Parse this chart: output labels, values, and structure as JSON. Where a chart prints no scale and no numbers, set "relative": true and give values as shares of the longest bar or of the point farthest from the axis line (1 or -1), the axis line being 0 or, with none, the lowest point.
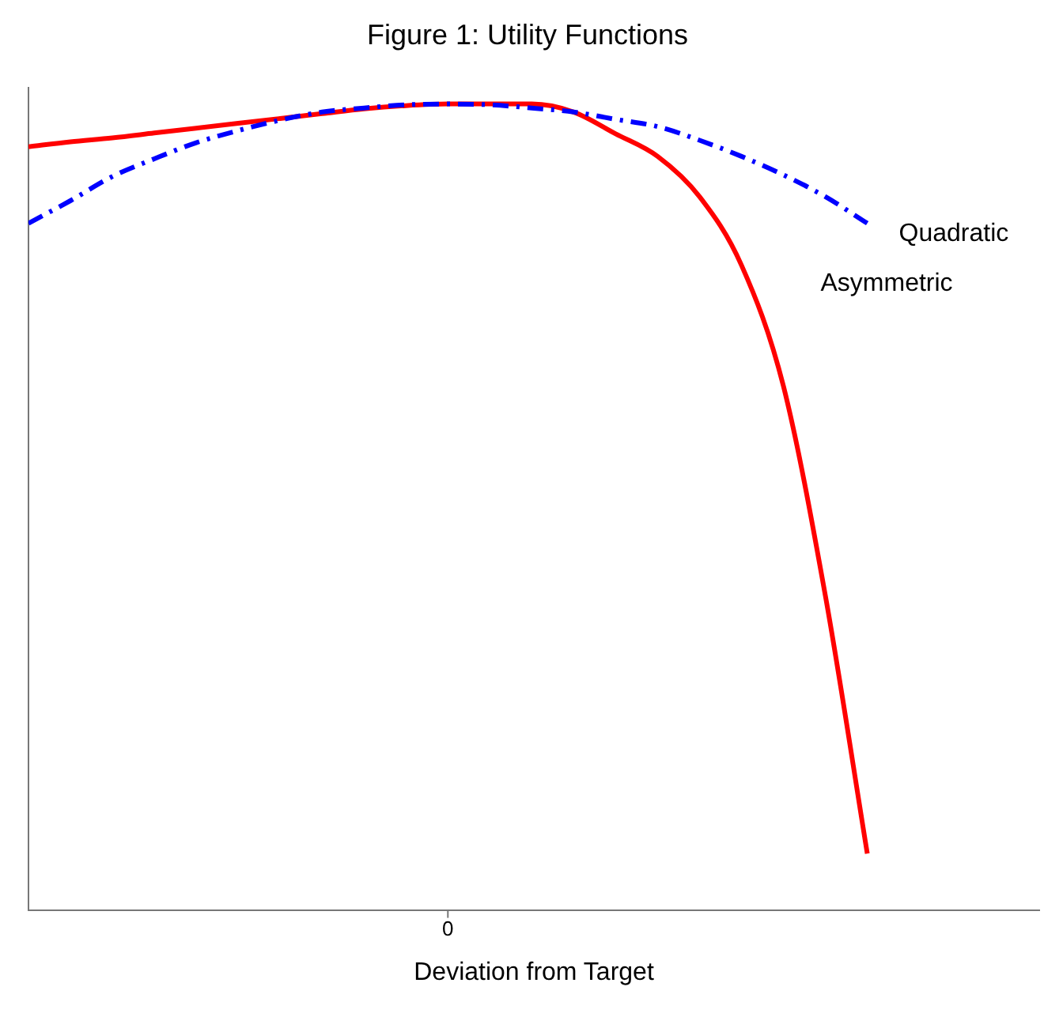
{
  "chart_data": {
    "type": "line",
    "title": "Figure 1: Utility Functions",
    "xlabel": "Deviation from Target",
    "relative": true,
    "annotations": [
      "0"
    ],
    "grid": false,
    "legend": false,
    "marker": "none",
    "categories": [
      null,
      null,
      null,
      null,
      null,
      null,
      null,
      null,
      null,
      null,
      null,
      null,
      null,
      null,
      null,
      null,
      null,
      null,
      null,
      null,
      null
    ],
    "series": [
      {
        "name": "Quadratic",
        "color": "#0000ff",
        "line_style": "dashdot",
        "values": [
          0.852,
          0.88,
          0.91,
          0.932,
          0.952,
          0.967,
          0.98,
          0.99,
          0.995,
          0.999,
          1,
          0.999,
          0.995,
          0.99,
          0.981,
          0.972,
          0.955,
          0.935,
          0.912,
          0.885,
          0.852
        ]
      },
      {
        "name": "Asymmetric",
        "color": "#ff0000",
        "line_style": "solid",
        "values": [
          0.947,
          0.953,
          0.958,
          0.964,
          0.97,
          0.976,
          0.982,
          0.988,
          0.994,
          0.998,
          1,
          1,
          1,
          0.99,
          0.963,
          0.935,
          0.885,
          0.8,
          0.65,
          0.39,
          0.07
        ]
      }
    ]
  }
}
